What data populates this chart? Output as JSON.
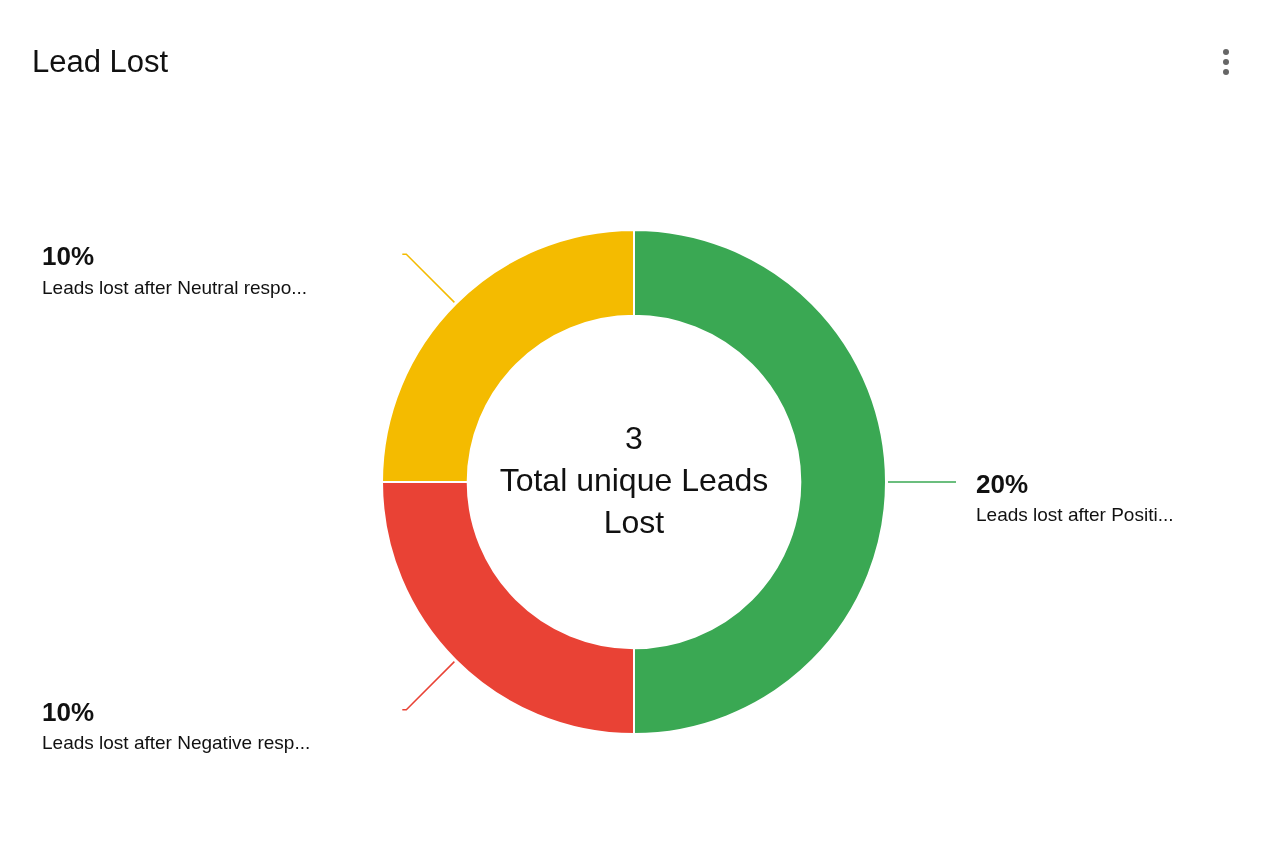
{
  "chart_data": {
    "type": "donut",
    "title": "Lead Lost",
    "categories": [
      "Leads lost after Positi...",
      "Leads lost after Negative resp...",
      "Leads lost after Neutral respo..."
    ],
    "values": [
      20,
      10,
      10
    ],
    "colors": [
      "#3aa853",
      "#e94235",
      "#f4bb00"
    ],
    "value_labels": [
      "20%",
      "10%",
      "10%"
    ],
    "annotations": [
      "3",
      "Total unique Leads Lost"
    ],
    "legend": false
  }
}
